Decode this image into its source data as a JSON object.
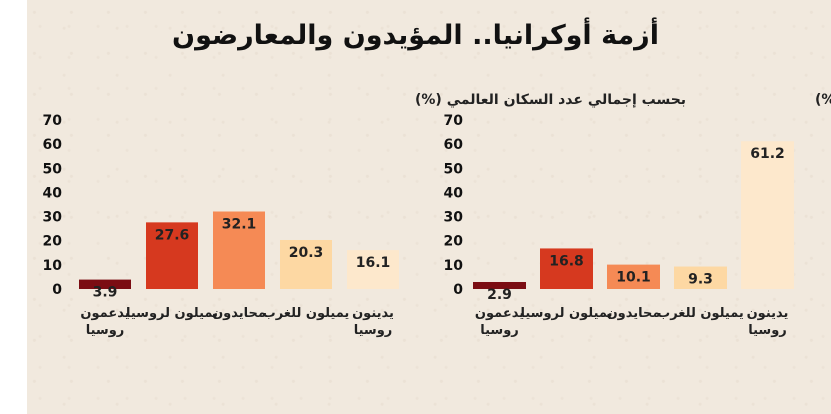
{
  "title": "أزمة أوكرانيا.. المؤيدون والمعارضون",
  "colors": [
    "#7b0d13",
    "#d6391f",
    "#f58a55",
    "#fdd8a3",
    "#fde8cc"
  ],
  "chart_data": [
    {
      "type": "bar",
      "title": "بحسب إجمالي عدد السكان العالمي (%)",
      "categories": [
        [
          "يدعمون",
          "روسيا"
        ],
        [
          "يميلون لروسيا"
        ],
        [
          "محايدون"
        ],
        [
          "يميلون للغرب"
        ],
        [
          "يدينون",
          "روسيا"
        ]
      ],
      "values": [
        3.9,
        27.6,
        32.1,
        20.3,
        16.1
      ],
      "value_labels": [
        "3.9",
        "27.6",
        "32.1",
        "20.3",
        "16.1"
      ],
      "ylim": [
        0,
        70
      ],
      "yticks": [
        0,
        10,
        20,
        30,
        40,
        50,
        60,
        70
      ],
      "xlabel": "",
      "ylabel": ""
    },
    {
      "type": "bar",
      "title": "بحسب إجمالي الدخل المحلي العالمي (%)",
      "categories": [
        [
          "يدعمون",
          "روسيا"
        ],
        [
          "يميلون لروسيا"
        ],
        [
          "محايدون"
        ],
        [
          "يميلون للغرب"
        ],
        [
          "يدينون",
          "روسيا"
        ]
      ],
      "values": [
        2.9,
        16.8,
        10.1,
        9.3,
        61.2
      ],
      "value_labels": [
        "2.9",
        "16.8",
        "10.1",
        "9.3",
        "61.2"
      ],
      "ylim": [
        0,
        70
      ],
      "yticks": [
        0,
        10,
        20,
        30,
        40,
        50,
        60,
        70
      ],
      "xlabel": "",
      "ylabel": ""
    }
  ]
}
